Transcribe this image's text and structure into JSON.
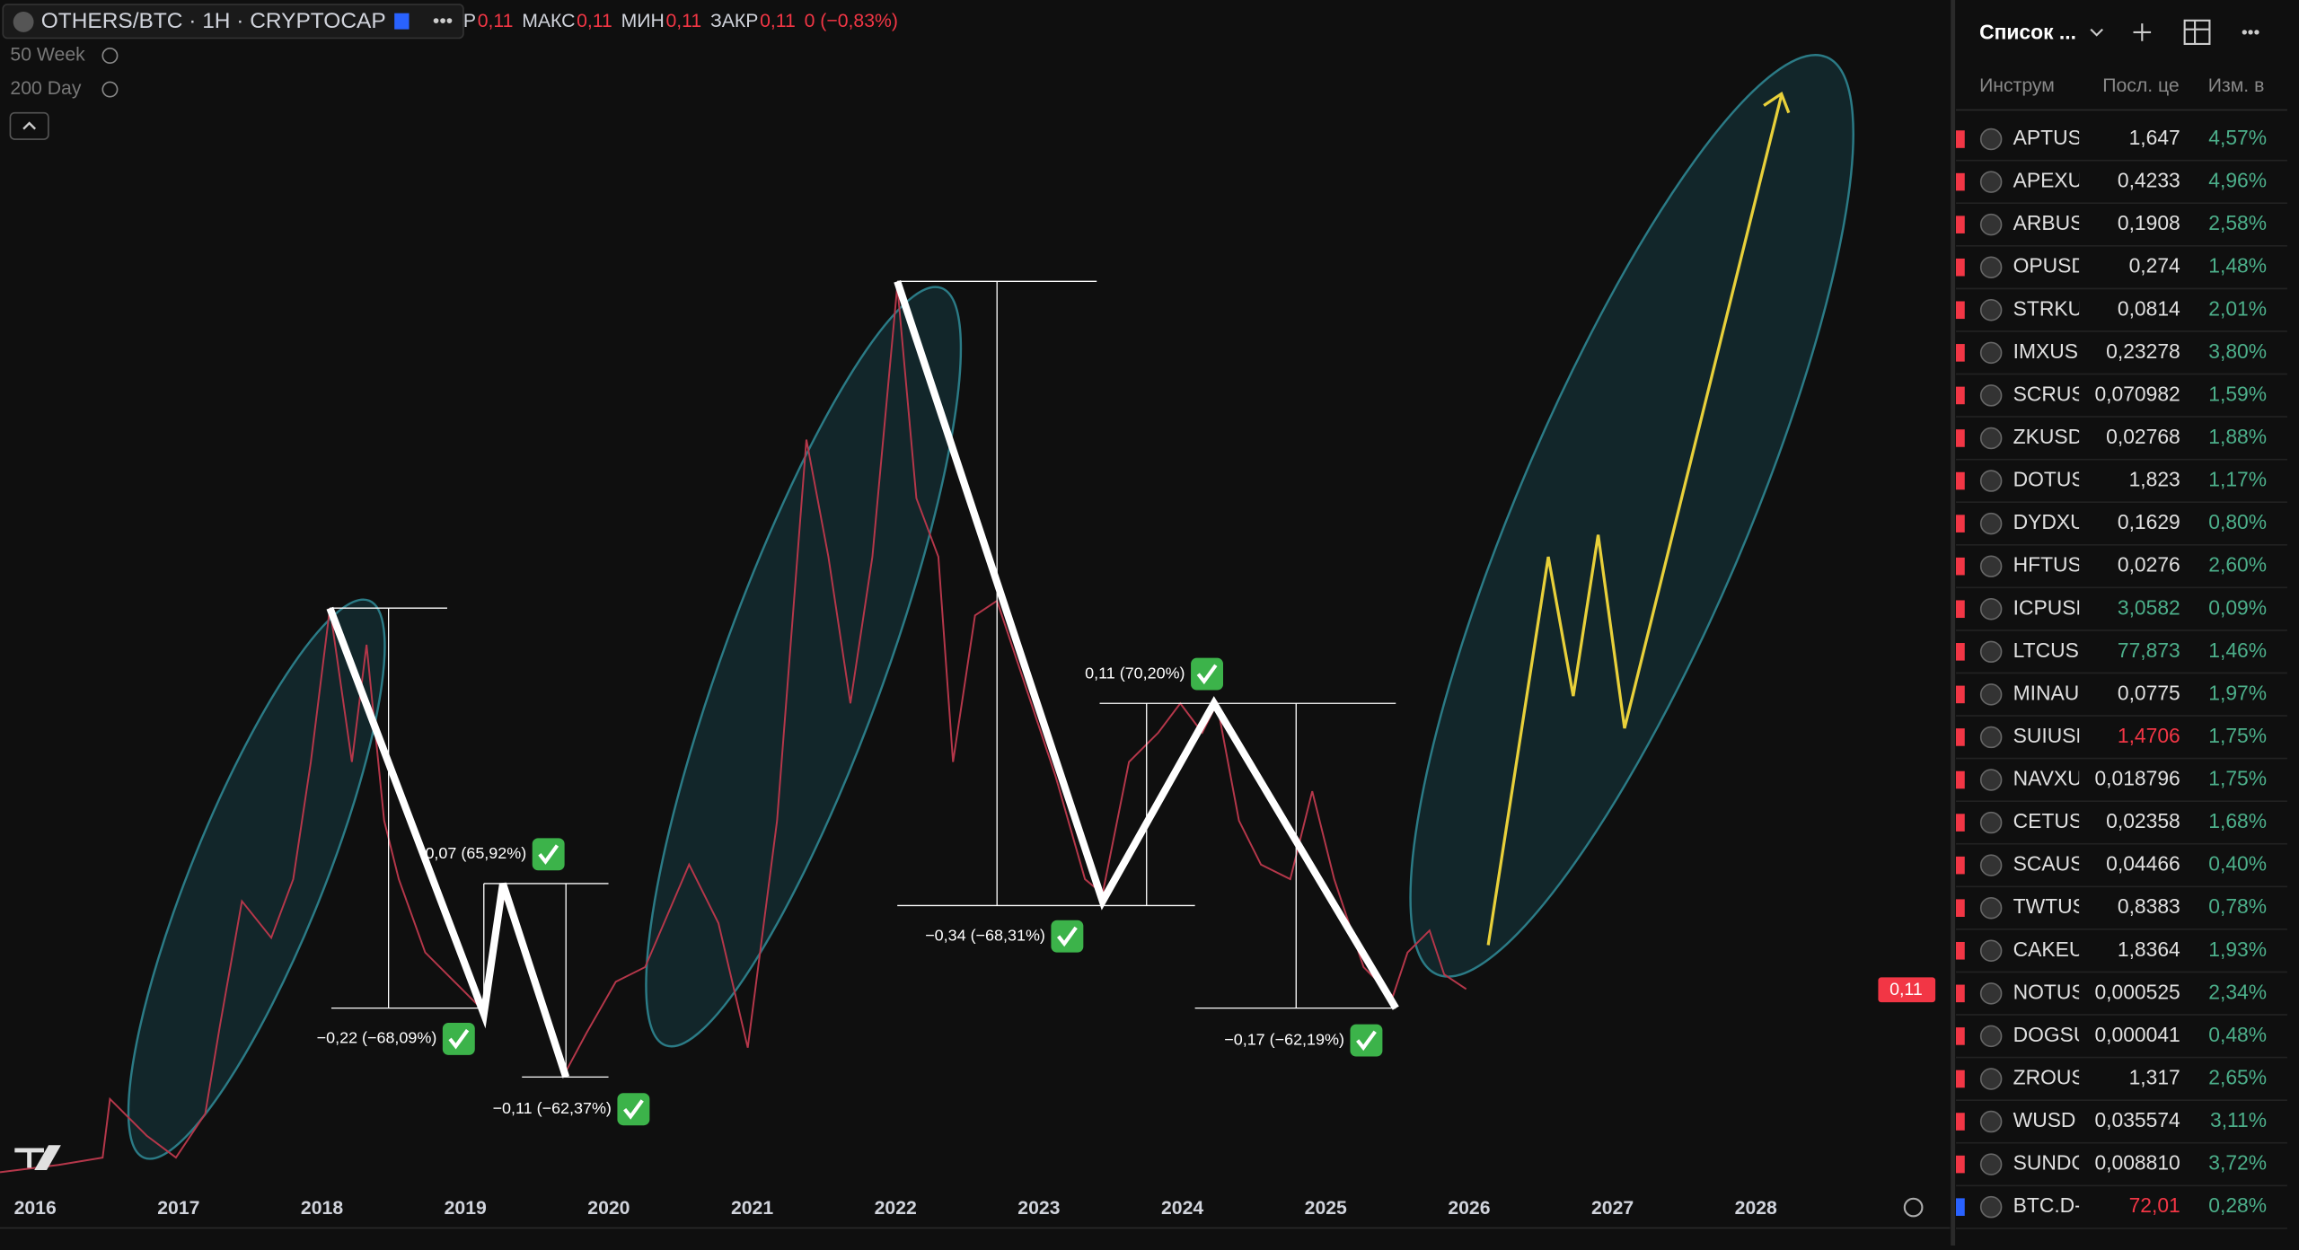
{
  "header": {
    "symbol": "OTHERS/BTC · 1H · CRYPTOCAP",
    "ohlc": [
      {
        "label": "Р",
        "value": "0,11"
      },
      {
        "label": "МАКС",
        "value": "0,11"
      },
      {
        "label": "МИН",
        "value": "0,11"
      },
      {
        "label": "ЗАКР",
        "value": "0,11"
      }
    ],
    "change": "0 (−0,83%)"
  },
  "indicators": [
    "50 Week",
    "200 Day"
  ],
  "annotations": [
    "0,07 (65,92%)",
    "−0,22 (−68,09%)",
    "−0,11 (−62,37%)",
    "−0,34 (−68,31%)",
    "0,11 (70,20%)",
    "−0,17 (−62,19%)"
  ],
  "x_axis": [
    "2016",
    "2017",
    "2018",
    "2019",
    "2020",
    "2021",
    "2022",
    "2023",
    "2024",
    "2025",
    "2026",
    "2027",
    "2028"
  ],
  "price_label": "0,11",
  "watchlist": {
    "title": "Список ...",
    "columns": [
      "Инструм",
      "Посл. це",
      "Изм. в"
    ],
    "rows": [
      {
        "symbol": "APTUS",
        "last": "1,647",
        "change": "4,57%"
      },
      {
        "symbol": "APEXU",
        "last": "0,4233",
        "change": "4,96%"
      },
      {
        "symbol": "ARBUS",
        "last": "0,1908",
        "change": "2,58%"
      },
      {
        "symbol": "OPUSD",
        "last": "0,274",
        "change": "1,48%"
      },
      {
        "symbol": "STRKU",
        "last": "0,0814",
        "change": "2,01%"
      },
      {
        "symbol": "IMXUS",
        "last": "0,23278",
        "change": "3,80%"
      },
      {
        "symbol": "SCRUS",
        "last": "0,070982",
        "change": "1,59%"
      },
      {
        "symbol": "ZKUSD",
        "last": "0,02768",
        "change": "1,88%"
      },
      {
        "symbol": "DOTUS",
        "last": "1,823",
        "change": "1,17%"
      },
      {
        "symbol": "DYDXU",
        "last": "0,1629",
        "change": "0,80%"
      },
      {
        "symbol": "HFTUS",
        "last": "0,0276",
        "change": "2,60%"
      },
      {
        "symbol": "ICPUSD",
        "last": "3,0582",
        "change": "0,09%",
        "last_color": "#4caf8a"
      },
      {
        "symbol": "LTCUS",
        "last": "77,873",
        "change": "1,46%",
        "last_color": "#4caf8a"
      },
      {
        "symbol": "MINAU",
        "last": "0,0775",
        "change": "1,97%"
      },
      {
        "symbol": "SUIUSD",
        "last": "1,4706",
        "change": "1,75%",
        "last_color": "#f23645"
      },
      {
        "symbol": "NAVXU",
        "last": "0,018796",
        "change": "1,75%"
      },
      {
        "symbol": "CETUS",
        "last": "0,02358",
        "change": "1,68%"
      },
      {
        "symbol": "SCAUS",
        "last": "0,04466",
        "change": "0,40%"
      },
      {
        "symbol": "TWTUS",
        "last": "0,8383",
        "change": "0,78%"
      },
      {
        "symbol": "CAKEU",
        "last": "1,8364",
        "change": "1,93%"
      },
      {
        "symbol": "NOTUS",
        "last": "0,000525",
        "change": "2,34%"
      },
      {
        "symbol": "DOGSU",
        "last": "0,000041",
        "change": "0,48%"
      },
      {
        "symbol": "ZROUS",
        "last": "1,317",
        "change": "2,65%"
      },
      {
        "symbol": "WUSD",
        "last": "0,035574",
        "change": "3,11%"
      },
      {
        "symbol": "SUNDC",
        "last": "0,008810",
        "change": "3,72%"
      },
      {
        "symbol": "BTC.D-",
        "last": "72,01",
        "change": "0,28%",
        "last_color": "#f23645"
      }
    ]
  }
}
